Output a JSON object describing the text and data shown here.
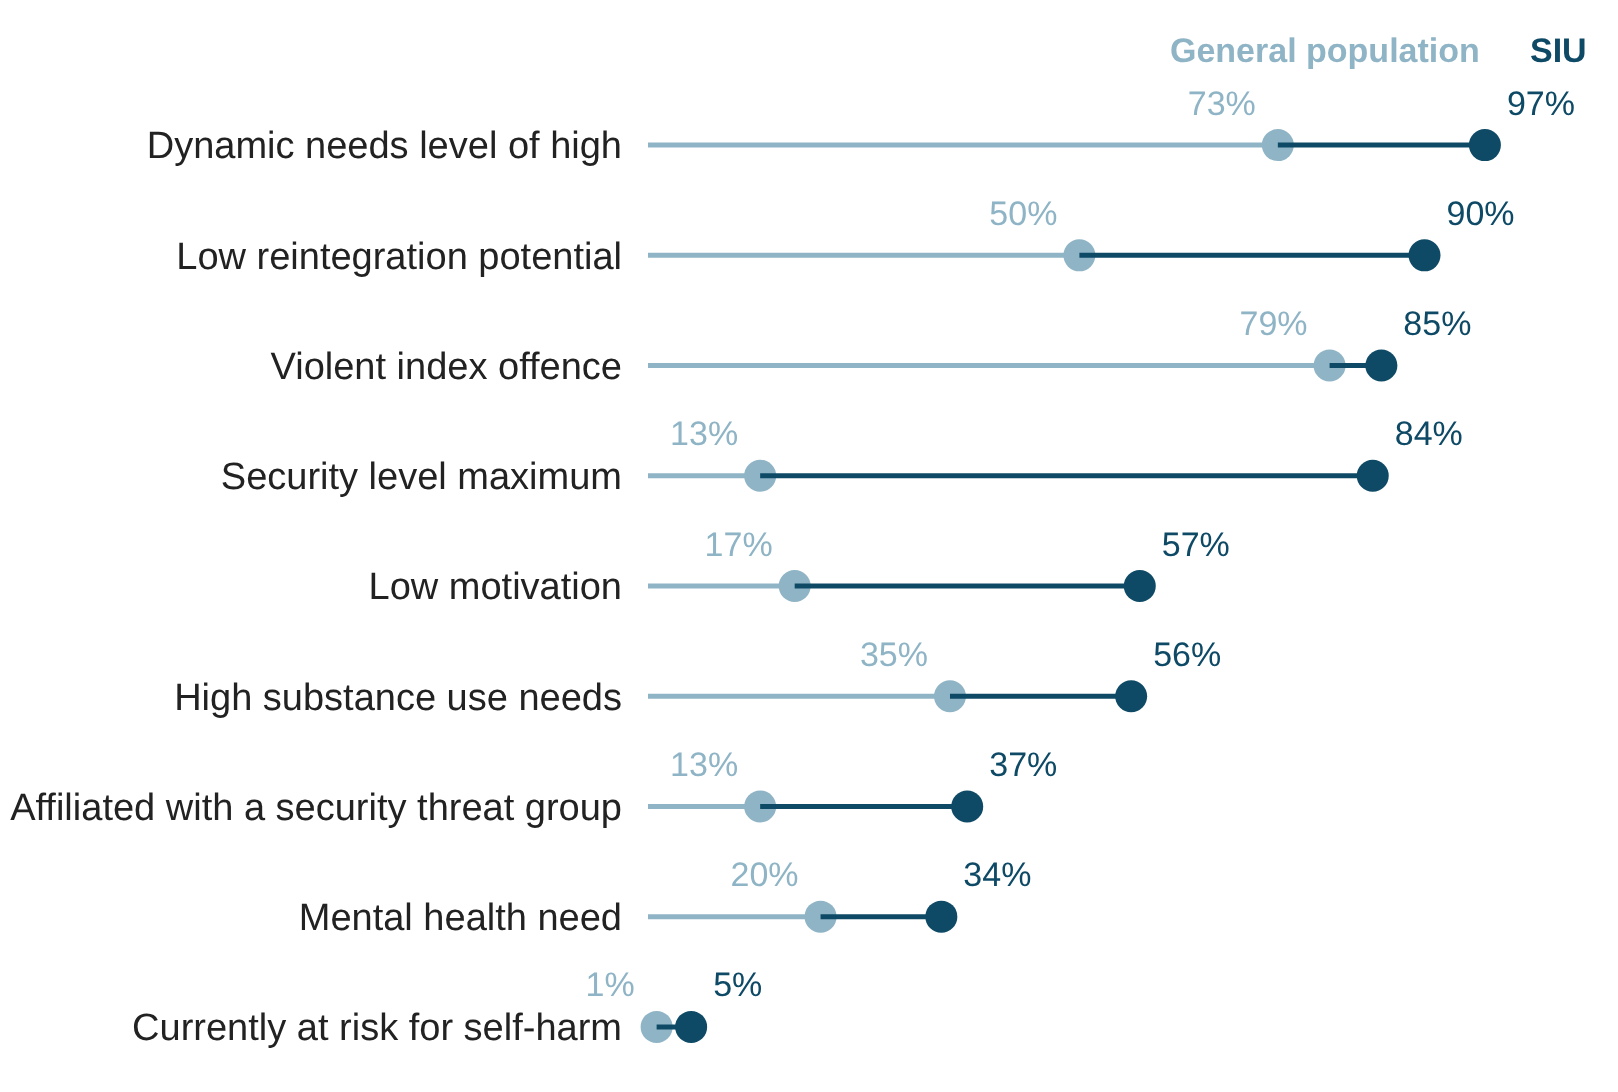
{
  "chart_data": {
    "type": "lollipop",
    "orientation": "horizontal",
    "categories": [
      "Dynamic needs level of high",
      "Low reintegration potential",
      "Violent index offence",
      "Security level maximum",
      "Low motivation",
      "High substance use needs",
      "Affiliated with a security threat group",
      "Mental health need",
      "Currently at risk for self-harm"
    ],
    "series": [
      {
        "name": "General population",
        "color": "#8fb4c6",
        "values": [
          73,
          50,
          79,
          13,
          17,
          35,
          13,
          20,
          1
        ],
        "value_labels": [
          "73%",
          "50%",
          "79%",
          "13%",
          "17%",
          "35%",
          "13%",
          "20%",
          "1%"
        ]
      },
      {
        "name": "SIU",
        "color": "#0e4a66",
        "values": [
          97,
          90,
          85,
          84,
          57,
          56,
          37,
          34,
          5
        ],
        "value_labels": [
          "97%",
          "90%",
          "85%",
          "84%",
          "57%",
          "56%",
          "37%",
          "34%",
          "5%"
        ]
      }
    ],
    "tick_labels": "y",
    "marker": "circle"
  }
}
